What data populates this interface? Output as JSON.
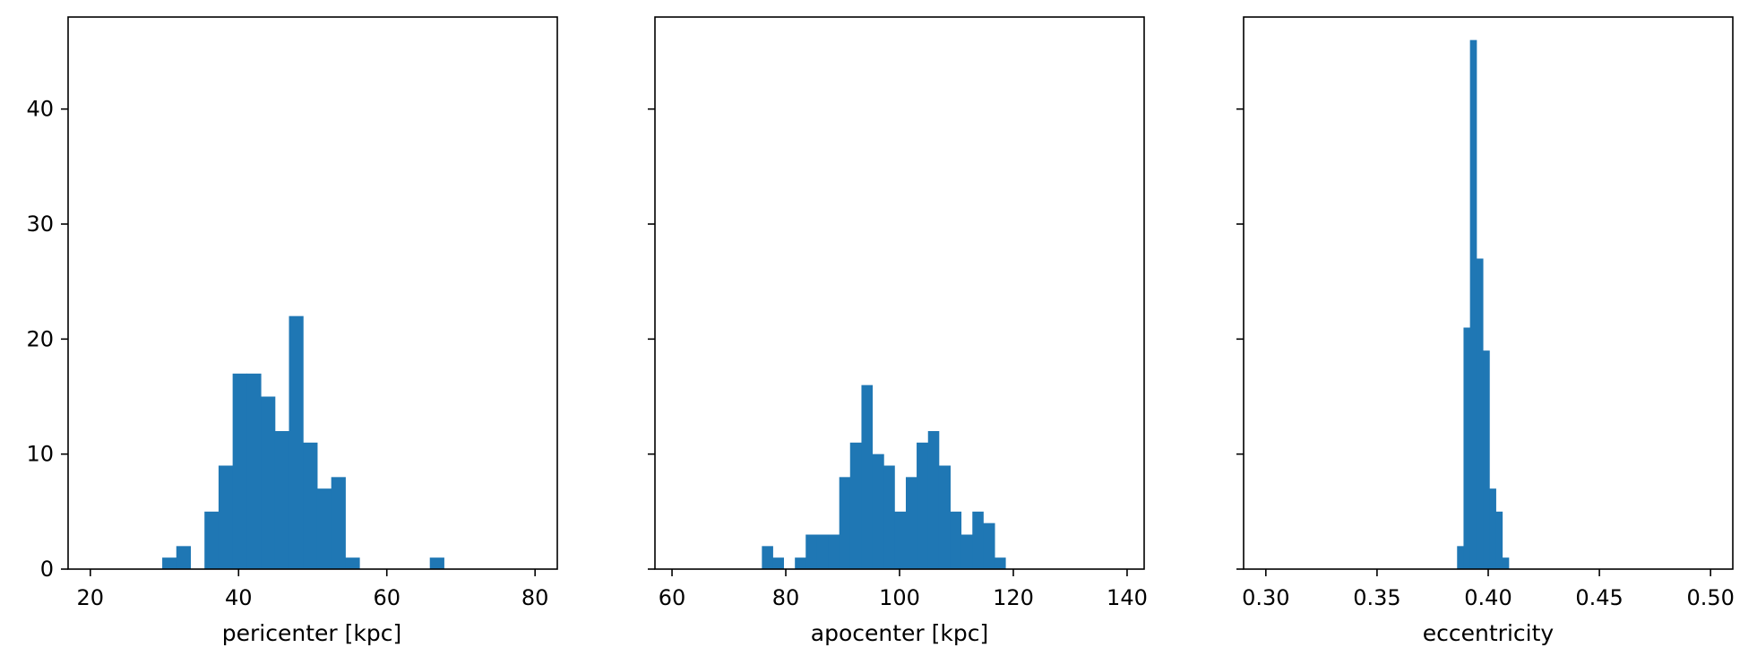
{
  "figure": {
    "bar_color": "#1f77b4",
    "axes_color": "#000000"
  },
  "chart_data": [
    {
      "type": "bar",
      "xlabel": "pericenter [kpc]",
      "ylabel": "",
      "xlim": [
        17,
        83
      ],
      "ylim": [
        0,
        48
      ],
      "xticks": [
        20,
        40,
        60,
        80
      ],
      "yticks": [
        0,
        10,
        20,
        30,
        40
      ],
      "show_ytick_labels": true,
      "bin_edges": [
        29.7,
        31.6,
        33.5,
        35.4,
        37.3,
        39.2,
        41.1,
        43.0,
        44.9,
        46.8,
        48.7,
        50.6,
        52.5,
        54.4,
        56.3,
        58.2,
        60.1,
        62.0,
        63.9,
        65.8,
        67.7
      ],
      "counts": [
        1,
        2,
        0,
        5,
        9,
        17,
        17,
        15,
        12,
        22,
        11,
        7,
        8,
        1,
        0,
        0,
        0,
        0,
        0,
        1
      ]
    },
    {
      "type": "bar",
      "xlabel": "apocenter [kpc]",
      "ylabel": "",
      "xlim": [
        57,
        143
      ],
      "ylim": [
        0,
        48
      ],
      "xticks": [
        60,
        80,
        100,
        120,
        140
      ],
      "yticks": [
        0,
        10,
        20,
        30,
        40
      ],
      "show_ytick_labels": false,
      "bin_edges": [
        75.8,
        77.7,
        79.6,
        81.6,
        83.5,
        85.5,
        87.4,
        89.4,
        91.3,
        93.3,
        95.2,
        97.2,
        99.1,
        101.1,
        103.0,
        105.0,
        106.9,
        108.9,
        110.8,
        112.8,
        114.7,
        116.7,
        118.6,
        120.6,
        122.5,
        124.5,
        126.4,
        128.4,
        130.4
      ],
      "counts": [
        2,
        1,
        0,
        1,
        3,
        3,
        3,
        8,
        11,
        16,
        10,
        9,
        5,
        8,
        11,
        12,
        9,
        5,
        3,
        5,
        4,
        1,
        0,
        0,
        0,
        0,
        0,
        0
      ]
    },
    {
      "type": "bar",
      "xlabel": "eccentricity",
      "ylabel": "",
      "xlim": [
        0.29,
        0.51
      ],
      "ylim": [
        0,
        48
      ],
      "xticks": [
        0.3,
        0.35,
        0.4,
        0.45,
        0.5
      ],
      "xtick_labels": [
        "0.30",
        "0.35",
        "0.40",
        "0.45",
        "0.50"
      ],
      "yticks": [
        0,
        10,
        20,
        30,
        40
      ],
      "show_ytick_labels": false,
      "bin_edges": [
        0.386,
        0.3889,
        0.3918,
        0.3947,
        0.3976,
        0.4005,
        0.4034,
        0.4063,
        0.4092,
        0.4121,
        0.415,
        0.4179,
        0.4208,
        0.4237
      ],
      "counts": [
        2,
        21,
        46,
        27,
        19,
        7,
        5,
        1,
        0,
        0,
        0,
        0,
        0
      ]
    }
  ]
}
